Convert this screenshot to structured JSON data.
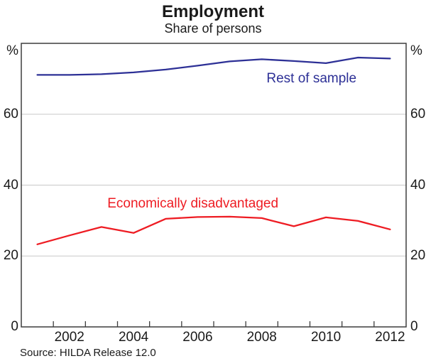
{
  "title": "Employment",
  "subtitle": "Share of persons",
  "source_note": "Source: HILDA Release 12.0",
  "colors": {
    "blue_series": "#2d3096",
    "red_series": "#ee1c23",
    "axis": "#3d3d3d",
    "grid": "#c8c8c8",
    "text": "#1a1a1a"
  },
  "chart_data": {
    "type": "line",
    "title": "Employment",
    "subtitle": "Share of persons",
    "xlabel": "",
    "ylabel": "%",
    "axis_unit_label": "%",
    "grid": "horizontal gridlines at labeled y ticks",
    "legend_position": "inline text annotations on lines",
    "x": [
      2001,
      2002,
      2003,
      2004,
      2005,
      2006,
      2007,
      2008,
      2009,
      2010,
      2011,
      2012
    ],
    "x_frame": [
      2000.5,
      2012.5
    ],
    "x_tick_labels": [
      "2002",
      "2004",
      "2006",
      "2008",
      "2010",
      "2012"
    ],
    "ylim": [
      0,
      80
    ],
    "y_ticks": [
      0,
      20,
      40,
      60
    ],
    "y_tick_labels": [
      "0",
      "20",
      "40",
      "60"
    ],
    "series": [
      {
        "name": "Rest of sample",
        "color": "#2d3096",
        "values": [
          71.1,
          71.1,
          71.3,
          71.8,
          72.6,
          73.7,
          74.9,
          75.5,
          75.0,
          74.4,
          76.0,
          75.7
        ],
        "label_x": 2009.55,
        "label_y": 70.0
      },
      {
        "name": "Economically disadvantaged",
        "color": "#ee1c23",
        "values": [
          23.3,
          25.8,
          28.2,
          26.5,
          30.5,
          31.0,
          31.1,
          30.7,
          28.4,
          30.9,
          29.9,
          27.5
        ],
        "label_x": 2005.85,
        "label_y": 34.7
      }
    ]
  }
}
